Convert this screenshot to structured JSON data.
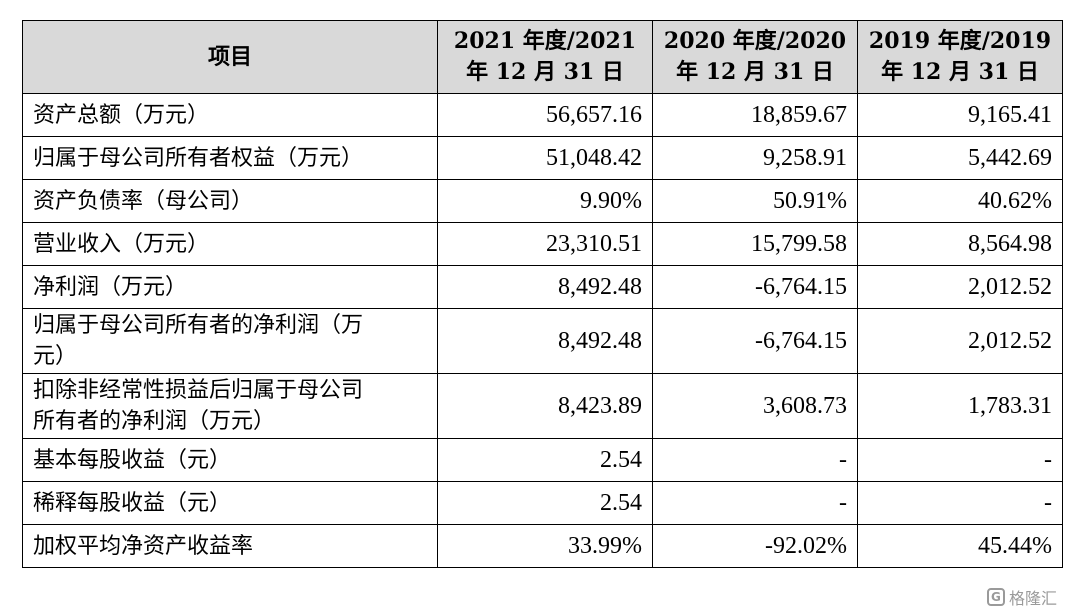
{
  "table": {
    "headers": [
      "项目",
      "2021 年度/2021 年 12 月 31 日",
      "2020 年度/2020 年 12 月 31 日",
      "2019 年度/2019 年 12 月 31 日"
    ],
    "header_lines": [
      [
        "项目"
      ],
      [
        "2021 年度/2021",
        "年 12 月 31 日"
      ],
      [
        "2020 年度/2020",
        "年 12 月 31 日"
      ],
      [
        "2019 年度/2019",
        "年 12 月 31 日"
      ]
    ],
    "header_bg": "#d9d9d9",
    "rows": [
      {
        "label_lines": [
          "资产总额（万元）"
        ],
        "values": [
          "56,657.16",
          "18,859.67",
          "9,165.41"
        ]
      },
      {
        "label_lines": [
          "归属于母公司所有者权益（万元）"
        ],
        "values": [
          "51,048.42",
          "9,258.91",
          "5,442.69"
        ]
      },
      {
        "label_lines": [
          "资产负债率（母公司）"
        ],
        "values": [
          "9.90%",
          "50.91%",
          "40.62%"
        ]
      },
      {
        "label_lines": [
          "营业收入（万元）"
        ],
        "values": [
          "23,310.51",
          "15,799.58",
          "8,564.98"
        ]
      },
      {
        "label_lines": [
          "净利润（万元）"
        ],
        "values": [
          "8,492.48",
          "-6,764.15",
          "2,012.52"
        ]
      },
      {
        "label_lines": [
          "归属于母公司所有者的净利润（万",
          "元）"
        ],
        "values": [
          "8,492.48",
          "-6,764.15",
          "2,012.52"
        ]
      },
      {
        "label_lines": [
          "扣除非经常性损益后归属于母公司",
          "所有者的净利润（万元）"
        ],
        "values": [
          "8,423.89",
          "3,608.73",
          "1,783.31"
        ]
      },
      {
        "label_lines": [
          "基本每股收益（元）"
        ],
        "values": [
          "2.54",
          "-",
          "-"
        ]
      },
      {
        "label_lines": [
          "稀释每股收益（元）"
        ],
        "values": [
          "2.54",
          "-",
          "-"
        ]
      },
      {
        "label_lines": [
          "加权平均净资产收益率"
        ],
        "values": [
          "33.99%",
          "-92.02%",
          "45.44%"
        ]
      }
    ]
  },
  "watermark": {
    "logo_icon": "gelonghui-logo-icon",
    "text": "格隆汇"
  }
}
